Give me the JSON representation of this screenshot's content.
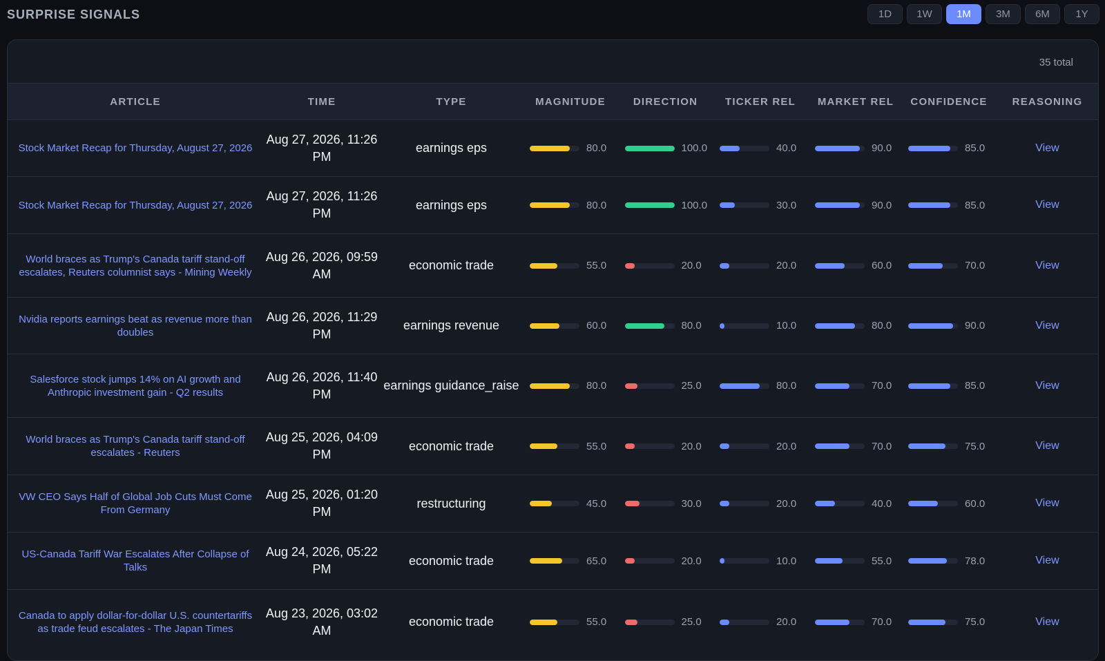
{
  "title": "SURPRISE SIGNALS",
  "ranges": [
    "1D",
    "1W",
    "1M",
    "3M",
    "6M",
    "1Y"
  ],
  "active_range": "1M",
  "total": "35 total",
  "colors": {
    "magnitude": "#f5c62a",
    "direction_up": "#2fcf8f",
    "direction_down": "#f06a6a",
    "relevance": "#6c8bff",
    "link": "#7f98ff"
  },
  "columns": [
    "ARTICLE",
    "TIME",
    "TYPE",
    "MAGNITUDE",
    "DIRECTION",
    "TICKER REL",
    "MARKET REL",
    "CONFIDENCE",
    "REASONING"
  ],
  "rows": [
    {
      "article": "Stock Market Recap for Thursday, August 27, 2026",
      "time": "Aug 27, 2026, 11:26 PM",
      "type": "earnings eps",
      "magnitude": "80.0",
      "direction": "100.0",
      "direction_sign": "up",
      "ticker_rel": "40.0",
      "market_rel": "90.0",
      "confidence": "85.0",
      "reasoning": "View"
    },
    {
      "article": "Stock Market Recap for Thursday, August 27, 2026",
      "time": "Aug 27, 2026, 11:26 PM",
      "type": "earnings eps",
      "magnitude": "80.0",
      "direction": "100.0",
      "direction_sign": "up",
      "ticker_rel": "30.0",
      "market_rel": "90.0",
      "confidence": "85.0",
      "reasoning": "View"
    },
    {
      "article": "World braces as Trump's Canada tariff stand-off escalates, Reuters columnist says - Mining Weekly",
      "time": "Aug 26, 2026, 09:59 AM",
      "type": "economic trade",
      "magnitude": "55.0",
      "direction": "20.0",
      "direction_sign": "down",
      "ticker_rel": "20.0",
      "market_rel": "60.0",
      "confidence": "70.0",
      "reasoning": "View"
    },
    {
      "article": "Nvidia reports earnings beat as revenue more than doubles",
      "time": "Aug 26, 2026, 11:29 PM",
      "type": "earnings revenue",
      "magnitude": "60.0",
      "direction": "80.0",
      "direction_sign": "up",
      "ticker_rel": "10.0",
      "market_rel": "80.0",
      "confidence": "90.0",
      "reasoning": "View"
    },
    {
      "article": "Salesforce stock jumps 14% on AI growth and Anthropic investment gain - Q2 results",
      "time": "Aug 26, 2026, 11:40 PM",
      "type": "earnings guidance_raise",
      "magnitude": "80.0",
      "direction": "25.0",
      "direction_sign": "down",
      "ticker_rel": "80.0",
      "market_rel": "70.0",
      "confidence": "85.0",
      "reasoning": "View"
    },
    {
      "article": "World braces as Trump's Canada tariff stand-off escalates - Reuters",
      "time": "Aug 25, 2026, 04:09 PM",
      "type": "economic trade",
      "magnitude": "55.0",
      "direction": "20.0",
      "direction_sign": "down",
      "ticker_rel": "20.0",
      "market_rel": "70.0",
      "confidence": "75.0",
      "reasoning": "View"
    },
    {
      "article": "VW CEO Says Half of Global Job Cuts Must Come From Germany",
      "time": "Aug 25, 2026, 01:20 PM",
      "type": "restructuring",
      "magnitude": "45.0",
      "direction": "30.0",
      "direction_sign": "down",
      "ticker_rel": "20.0",
      "market_rel": "40.0",
      "confidence": "60.0",
      "reasoning": "View"
    },
    {
      "article": "US-Canada Tariff War Escalates After Collapse of Talks",
      "time": "Aug 24, 2026, 05:22 PM",
      "type": "economic trade",
      "magnitude": "65.0",
      "direction": "20.0",
      "direction_sign": "down",
      "ticker_rel": "10.0",
      "market_rel": "55.0",
      "confidence": "78.0",
      "reasoning": "View"
    },
    {
      "article": "Canada to apply dollar-for-dollar U.S. countertariffs as trade feud escalates - The Japan Times",
      "time": "Aug 23, 2026, 03:02 AM",
      "type": "economic trade",
      "magnitude": "55.0",
      "direction": "25.0",
      "direction_sign": "down",
      "ticker_rel": "20.0",
      "market_rel": "70.0",
      "confidence": "75.0",
      "reasoning": "View"
    }
  ]
}
